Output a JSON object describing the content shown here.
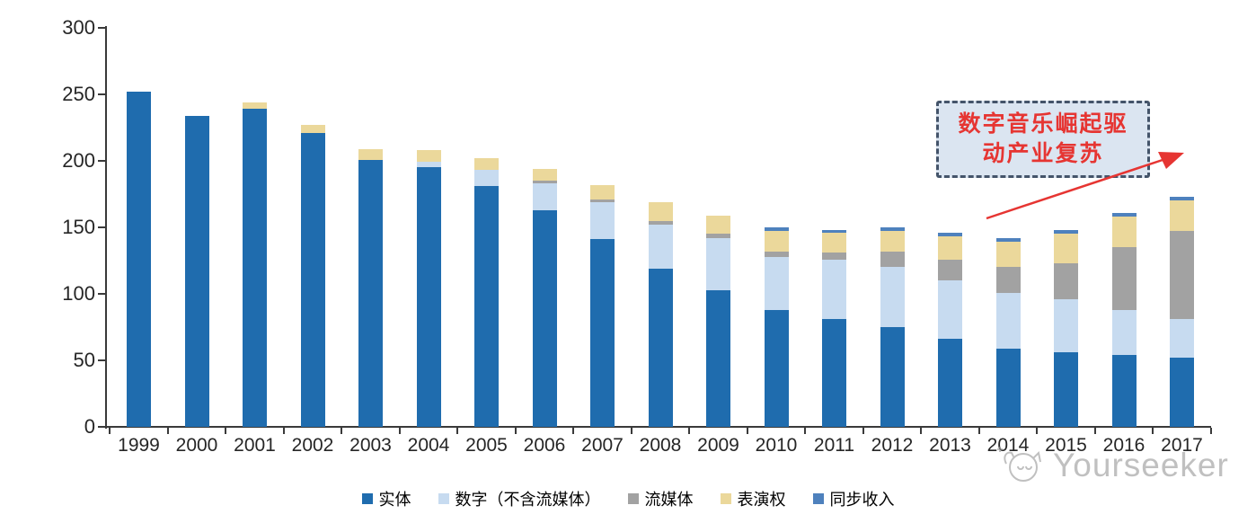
{
  "chart_data": {
    "type": "bar",
    "stacked": true,
    "title": "",
    "xlabel": "",
    "ylabel": "",
    "categories": [
      "1999",
      "2000",
      "2001",
      "2002",
      "2003",
      "2004",
      "2005",
      "2006",
      "2007",
      "2008",
      "2009",
      "2010",
      "2011",
      "2012",
      "2013",
      "2014",
      "2015",
      "2016",
      "2017"
    ],
    "series": [
      {
        "name": "实体",
        "color": "#1F6CAE",
        "values": [
          252,
          234,
          239,
          221,
          201,
          195,
          181,
          163,
          141,
          119,
          103,
          88,
          81,
          75,
          66,
          59,
          56,
          54,
          52
        ]
      },
      {
        "name": "数字（不含流媒体）",
        "color": "#C7DBF0",
        "values": [
          0,
          0,
          0,
          0,
          0,
          4,
          12,
          20,
          28,
          33,
          39,
          40,
          45,
          45,
          44,
          42,
          40,
          34,
          29
        ]
      },
      {
        "name": "流媒体",
        "color": "#A2A2A2",
        "values": [
          0,
          0,
          0,
          0,
          0,
          0,
          0,
          2,
          2,
          3,
          3,
          4,
          5,
          12,
          16,
          19,
          27,
          47,
          66
        ]
      },
      {
        "name": "表演权",
        "color": "#EBD89B",
        "values": [
          0,
          0,
          5,
          6,
          8,
          9,
          9,
          9,
          11,
          14,
          14,
          15,
          15,
          15,
          17,
          19,
          22,
          23,
          23
        ]
      },
      {
        "name": "同步收入",
        "color": "#4E81BD",
        "values": [
          0,
          0,
          0,
          0,
          0,
          0,
          0,
          0,
          0,
          0,
          0,
          3,
          2,
          3,
          3,
          3,
          3,
          3,
          3
        ]
      }
    ],
    "ylim": [
      0,
      300
    ],
    "yticks": [
      0,
      50,
      100,
      150,
      200,
      250,
      300
    ],
    "grid": false,
    "legend_position": "bottom"
  },
  "annotation": {
    "line1": "数字音乐崛起驱",
    "line2": "动产业复苏",
    "text_color": "#e63532",
    "box_fill": "#dbe5f1",
    "box_border": "#44546a",
    "arrow_color": "#e63532"
  },
  "watermark": {
    "text": "Yourseeker",
    "logo": "yourseeker-cat-logo",
    "color": "#9a9a9a"
  }
}
